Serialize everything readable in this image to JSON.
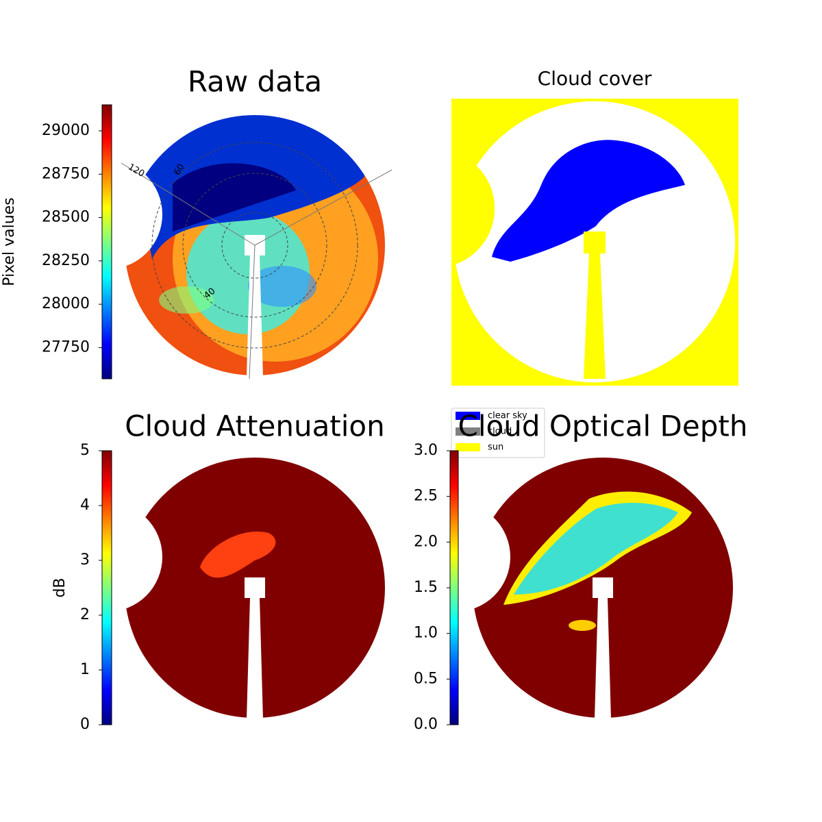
{
  "chart_data": [
    {
      "type": "heatmap",
      "title": "Raw data",
      "annotations": [
        "120",
        "60",
        "40"
      ],
      "colorbar": {
        "label": "Pixel values",
        "colormap": "jet",
        "lim": [
          27570,
          29150
        ],
        "ticks": [
          27750,
          28000,
          28250,
          28500,
          28750,
          29000
        ]
      }
    },
    {
      "type": "mask",
      "title": "Cloud cover",
      "legend": [
        {
          "name": "clear sky",
          "color": "#0000ff"
        },
        {
          "name": "cloud",
          "color": "#808080"
        },
        {
          "name": "sun",
          "color": "#ffff00"
        }
      ]
    },
    {
      "type": "heatmap",
      "title": "Cloud Attenuation",
      "colorbar": {
        "label": "dB",
        "colormap": "jet",
        "lim": [
          0,
          5
        ],
        "ticks": [
          0,
          1,
          2,
          3,
          4,
          5
        ]
      }
    },
    {
      "type": "heatmap",
      "title": "Cloud Optical Depth",
      "colorbar": {
        "colormap": "jet",
        "lim": [
          0,
          3
        ],
        "ticks": [
          {
            "value": 0,
            "label": "0.0"
          },
          {
            "value": 0.5,
            "label": "0.5"
          },
          {
            "value": 1,
            "label": "1.0"
          },
          {
            "value": 1.5,
            "label": "1.5"
          },
          {
            "value": 2,
            "label": "2.0"
          },
          {
            "value": 2.5,
            "label": "2.5"
          },
          {
            "value": 3,
            "label": "3.0"
          }
        ]
      }
    }
  ]
}
